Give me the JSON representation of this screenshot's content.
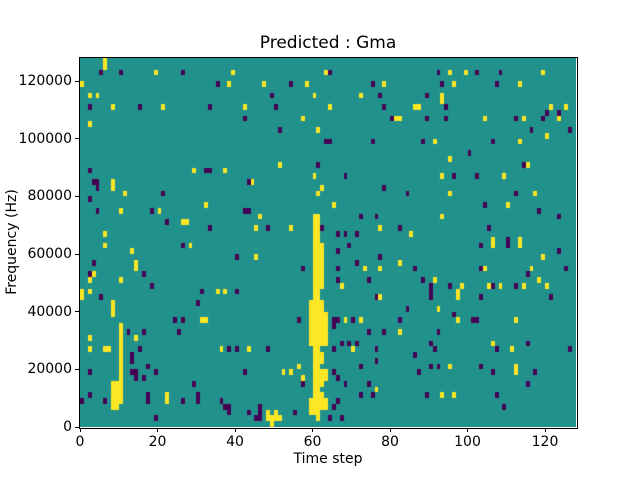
{
  "window": {
    "background": "#ffffff"
  },
  "chart_data": {
    "type": "heatmap",
    "title": "Predicted : Gma",
    "xlabel": "Time step",
    "ylabel": "Frequency (Hz)",
    "x_ticks": [
      0,
      20,
      40,
      60,
      80,
      100,
      120
    ],
    "y_ticks": [
      0,
      20000,
      40000,
      60000,
      80000,
      100000,
      120000
    ],
    "xlim": [
      0,
      128
    ],
    "ylim": [
      0,
      128000
    ],
    "n_time_steps": 128,
    "n_freq_bins": 64,
    "freq_bin_hz": 2000,
    "colormap": "viridis",
    "grid": false,
    "legend": "none",
    "value_levels": {
      "low": 0,
      "mid": 0.5,
      "high": 1
    },
    "colors": {
      "mid": "#21918c",
      "low": "#440154",
      "high": "#fde725"
    },
    "cells_high_runs": [
      [
        0,
        59,
        59
      ],
      [
        0,
        22,
        23
      ],
      [
        2,
        57,
        57
      ],
      [
        2,
        52,
        52
      ],
      [
        2,
        25,
        25
      ],
      [
        2,
        23,
        23
      ],
      [
        2,
        15,
        15
      ],
      [
        2,
        13,
        13
      ],
      [
        3,
        26,
        26
      ],
      [
        4,
        57,
        57
      ],
      [
        6,
        62,
        63
      ],
      [
        6,
        33,
        33
      ],
      [
        6,
        31,
        31
      ],
      [
        6,
        13,
        13
      ],
      [
        7,
        13,
        13
      ],
      [
        8,
        55,
        55
      ],
      [
        8,
        41,
        42
      ],
      [
        8,
        19,
        21
      ],
      [
        8,
        3,
        7
      ],
      [
        9,
        3,
        7
      ],
      [
        10,
        37,
        37
      ],
      [
        10,
        25,
        25
      ],
      [
        10,
        4,
        17
      ],
      [
        11,
        40,
        40
      ],
      [
        13,
        30,
        30
      ],
      [
        14,
        27,
        28
      ],
      [
        14,
        15,
        15
      ],
      [
        19,
        61,
        61
      ],
      [
        20,
        37,
        37
      ],
      [
        21,
        55,
        55
      ],
      [
        22,
        4,
        5
      ],
      [
        26,
        35,
        35
      ],
      [
        27,
        35,
        35
      ],
      [
        28,
        31,
        31
      ],
      [
        29,
        44,
        44
      ],
      [
        31,
        18,
        18
      ],
      [
        32,
        38,
        38
      ],
      [
        32,
        18,
        18
      ],
      [
        35,
        23,
        23
      ],
      [
        36,
        13,
        13
      ],
      [
        37,
        44,
        44
      ],
      [
        37,
        23,
        23
      ],
      [
        38,
        59,
        59
      ],
      [
        39,
        61,
        61
      ],
      [
        42,
        55,
        55
      ],
      [
        43,
        13,
        13
      ],
      [
        44,
        42,
        42
      ],
      [
        45,
        34,
        34
      ],
      [
        45,
        29,
        29
      ],
      [
        46,
        36,
        36
      ],
      [
        47,
        59,
        59
      ],
      [
        48,
        1,
        2
      ],
      [
        49,
        0,
        1
      ],
      [
        50,
        1,
        2
      ],
      [
        51,
        45,
        45
      ],
      [
        51,
        1,
        1
      ],
      [
        52,
        9,
        9
      ],
      [
        54,
        34,
        34
      ],
      [
        54,
        9,
        9
      ],
      [
        56,
        10,
        10
      ],
      [
        57,
        53,
        53
      ],
      [
        57,
        8,
        8
      ],
      [
        58,
        59,
        59
      ],
      [
        59,
        14,
        21
      ],
      [
        59,
        2,
        4
      ],
      [
        60,
        57,
        57
      ],
      [
        60,
        43,
        43
      ],
      [
        60,
        2,
        36
      ],
      [
        61,
        51,
        51
      ],
      [
        61,
        40,
        40
      ],
      [
        61,
        1,
        36
      ],
      [
        62,
        41,
        41
      ],
      [
        62,
        24,
        31
      ],
      [
        62,
        14,
        21
      ],
      [
        62,
        11,
        12
      ],
      [
        62,
        7,
        9
      ],
      [
        62,
        3,
        5
      ],
      [
        63,
        61,
        61
      ],
      [
        63,
        14,
        19
      ],
      [
        63,
        8,
        9
      ],
      [
        63,
        3,
        4
      ],
      [
        64,
        55,
        55
      ],
      [
        65,
        38,
        38
      ],
      [
        67,
        24,
        24
      ],
      [
        68,
        18,
        18
      ],
      [
        70,
        13,
        13
      ],
      [
        72,
        57,
        57
      ],
      [
        72,
        18,
        18
      ],
      [
        73,
        27,
        27
      ],
      [
        76,
        6,
        6
      ],
      [
        77,
        34,
        34
      ],
      [
        77,
        27,
        27
      ],
      [
        77,
        22,
        22
      ],
      [
        78,
        59,
        59
      ],
      [
        81,
        53,
        53
      ],
      [
        82,
        53,
        53
      ],
      [
        82,
        28,
        28
      ],
      [
        82,
        16,
        16
      ],
      [
        85,
        33,
        33
      ],
      [
        86,
        55,
        55
      ],
      [
        87,
        55,
        55
      ],
      [
        91,
        49,
        49
      ],
      [
        91,
        25,
        25
      ],
      [
        92,
        20,
        20
      ],
      [
        93,
        56,
        57
      ],
      [
        93,
        43,
        43
      ],
      [
        93,
        36,
        36
      ],
      [
        93,
        5,
        5
      ],
      [
        95,
        61,
        61
      ],
      [
        95,
        46,
        46
      ],
      [
        95,
        40,
        40
      ],
      [
        95,
        10,
        10
      ],
      [
        96,
        59,
        59
      ],
      [
        96,
        5,
        5
      ],
      [
        97,
        22,
        23
      ],
      [
        97,
        18,
        18
      ],
      [
        98,
        24,
        24
      ],
      [
        99,
        61,
        61
      ],
      [
        104,
        53,
        53
      ],
      [
        104,
        27,
        27
      ],
      [
        105,
        24,
        24
      ],
      [
        106,
        31,
        32
      ],
      [
        106,
        14,
        14
      ],
      [
        108,
        24,
        24
      ],
      [
        109,
        43,
        43
      ],
      [
        110,
        38,
        38
      ],
      [
        111,
        13,
        13
      ],
      [
        112,
        18,
        18
      ],
      [
        112,
        9,
        10
      ],
      [
        113,
        59,
        59
      ],
      [
        113,
        49,
        49
      ],
      [
        113,
        31,
        32
      ],
      [
        114,
        53,
        53
      ],
      [
        114,
        24,
        24
      ],
      [
        115,
        45,
        45
      ],
      [
        116,
        27,
        27
      ],
      [
        117,
        40,
        40
      ],
      [
        118,
        25,
        25
      ],
      [
        119,
        61,
        61
      ],
      [
        119,
        29,
        29
      ],
      [
        120,
        50,
        50
      ],
      [
        120,
        24,
        24
      ],
      [
        121,
        55,
        55
      ],
      [
        123,
        53,
        53
      ],
      [
        125,
        55,
        55
      ]
    ],
    "cells_low_runs": [
      [
        0,
        4,
        4
      ],
      [
        2,
        55,
        55
      ],
      [
        2,
        44,
        44
      ],
      [
        2,
        39,
        39
      ],
      [
        2,
        26,
        26
      ],
      [
        2,
        9,
        9
      ],
      [
        2,
        5,
        5
      ],
      [
        3,
        42,
        42
      ],
      [
        3,
        28,
        28
      ],
      [
        4,
        41,
        42
      ],
      [
        4,
        37,
        37
      ],
      [
        5,
        61,
        61
      ],
      [
        5,
        22,
        22
      ],
      [
        6,
        4,
        4
      ],
      [
        10,
        61,
        61
      ],
      [
        12,
        16,
        16
      ],
      [
        13,
        11,
        12
      ],
      [
        13,
        9,
        9
      ],
      [
        14,
        8,
        9
      ],
      [
        15,
        55,
        55
      ],
      [
        15,
        13,
        13
      ],
      [
        16,
        26,
        26
      ],
      [
        16,
        16,
        16
      ],
      [
        16,
        8,
        8
      ],
      [
        17,
        10,
        10
      ],
      [
        17,
        4,
        5
      ],
      [
        18,
        37,
        37
      ],
      [
        18,
        24,
        24
      ],
      [
        19,
        9,
        9
      ],
      [
        19,
        1,
        1
      ],
      [
        21,
        40,
        40
      ],
      [
        22,
        35,
        35
      ],
      [
        24,
        18,
        18
      ],
      [
        25,
        16,
        16
      ],
      [
        26,
        61,
        61
      ],
      [
        26,
        31,
        31
      ],
      [
        26,
        18,
        18
      ],
      [
        26,
        4,
        4
      ],
      [
        29,
        7,
        7
      ],
      [
        30,
        21,
        21
      ],
      [
        30,
        4,
        5
      ],
      [
        31,
        23,
        23
      ],
      [
        32,
        44,
        44
      ],
      [
        33,
        55,
        55
      ],
      [
        33,
        44,
        44
      ],
      [
        33,
        34,
        34
      ],
      [
        35,
        59,
        59
      ],
      [
        36,
        4,
        4
      ],
      [
        37,
        3,
        3
      ],
      [
        38,
        13,
        13
      ],
      [
        38,
        2,
        3
      ],
      [
        40,
        29,
        29
      ],
      [
        40,
        23,
        23
      ],
      [
        40,
        13,
        13
      ],
      [
        42,
        53,
        53
      ],
      [
        42,
        37,
        37
      ],
      [
        42,
        9,
        9
      ],
      [
        43,
        42,
        42
      ],
      [
        43,
        37,
        37
      ],
      [
        43,
        2,
        2
      ],
      [
        45,
        1,
        1
      ],
      [
        46,
        1,
        3
      ],
      [
        48,
        34,
        34
      ],
      [
        48,
        13,
        13
      ],
      [
        49,
        57,
        57
      ],
      [
        50,
        55,
        55
      ],
      [
        51,
        51,
        51
      ],
      [
        54,
        59,
        59
      ],
      [
        55,
        2,
        2
      ],
      [
        56,
        18,
        18
      ],
      [
        57,
        27,
        27
      ],
      [
        57,
        7,
        7
      ],
      [
        61,
        45,
        45
      ],
      [
        62,
        34,
        34
      ],
      [
        63,
        49,
        49
      ],
      [
        64,
        61,
        61
      ],
      [
        64,
        49,
        49
      ],
      [
        64,
        1,
        1
      ],
      [
        65,
        17,
        18
      ],
      [
        65,
        13,
        13
      ],
      [
        65,
        9,
        9
      ],
      [
        65,
        3,
        3
      ],
      [
        66,
        33,
        33
      ],
      [
        66,
        30,
        30
      ],
      [
        66,
        27,
        27
      ],
      [
        66,
        25,
        25
      ],
      [
        66,
        18,
        18
      ],
      [
        66,
        8,
        8
      ],
      [
        66,
        4,
        4
      ],
      [
        67,
        14,
        14
      ],
      [
        67,
        1,
        1
      ],
      [
        68,
        43,
        43
      ],
      [
        68,
        33,
        33
      ],
      [
        68,
        7,
        7
      ],
      [
        69,
        31,
        31
      ],
      [
        69,
        14,
        14
      ],
      [
        70,
        18,
        18
      ],
      [
        71,
        33,
        33
      ],
      [
        71,
        28,
        28
      ],
      [
        71,
        14,
        14
      ],
      [
        72,
        36,
        36
      ],
      [
        72,
        10,
        10
      ],
      [
        72,
        5,
        5
      ],
      [
        74,
        25,
        25
      ],
      [
        74,
        16,
        16
      ],
      [
        74,
        7,
        7
      ],
      [
        75,
        59,
        59
      ],
      [
        75,
        49,
        49
      ],
      [
        75,
        5,
        5
      ],
      [
        76,
        36,
        36
      ],
      [
        76,
        22,
        22
      ],
      [
        76,
        13,
        13
      ],
      [
        76,
        11,
        11
      ],
      [
        77,
        57,
        57
      ],
      [
        77,
        29,
        29
      ],
      [
        78,
        55,
        55
      ],
      [
        78,
        41,
        41
      ],
      [
        78,
        16,
        16
      ],
      [
        80,
        53,
        53
      ],
      [
        82,
        34,
        34
      ],
      [
        82,
        18,
        18
      ],
      [
        84,
        40,
        40
      ],
      [
        84,
        20,
        20
      ],
      [
        86,
        27,
        27
      ],
      [
        86,
        12,
        12
      ],
      [
        87,
        9,
        9
      ],
      [
        88,
        49,
        49
      ],
      [
        88,
        25,
        25
      ],
      [
        89,
        57,
        57
      ],
      [
        89,
        53,
        53
      ],
      [
        89,
        5,
        5
      ],
      [
        90,
        22,
        24
      ],
      [
        90,
        14,
        14
      ],
      [
        90,
        10,
        10
      ],
      [
        91,
        13,
        13
      ],
      [
        92,
        61,
        61
      ],
      [
        92,
        16,
        16
      ],
      [
        92,
        10,
        10
      ],
      [
        93,
        59,
        59
      ],
      [
        94,
        55,
        55
      ],
      [
        94,
        53,
        53
      ],
      [
        95,
        24,
        24
      ],
      [
        96,
        43,
        43
      ],
      [
        96,
        19,
        19
      ],
      [
        100,
        47,
        47
      ],
      [
        101,
        18,
        18
      ],
      [
        102,
        61,
        61
      ],
      [
        102,
        43,
        43
      ],
      [
        102,
        18,
        18
      ],
      [
        103,
        31,
        31
      ],
      [
        103,
        27,
        27
      ],
      [
        103,
        22,
        22
      ],
      [
        103,
        10,
        10
      ],
      [
        104,
        38,
        38
      ],
      [
        105,
        34,
        34
      ],
      [
        106,
        49,
        49
      ],
      [
        106,
        24,
        24
      ],
      [
        106,
        9,
        9
      ],
      [
        107,
        59,
        59
      ],
      [
        107,
        13,
        13
      ],
      [
        107,
        5,
        5
      ],
      [
        108,
        61,
        61
      ],
      [
        109,
        3,
        3
      ],
      [
        110,
        31,
        32
      ],
      [
        112,
        53,
        53
      ],
      [
        112,
        40,
        40
      ],
      [
        112,
        24,
        24
      ],
      [
        114,
        45,
        45
      ],
      [
        115,
        26,
        26
      ],
      [
        115,
        14,
        14
      ],
      [
        115,
        7,
        7
      ],
      [
        116,
        51,
        51
      ],
      [
        117,
        9,
        9
      ],
      [
        118,
        37,
        37
      ],
      [
        119,
        53,
        53
      ],
      [
        120,
        54,
        54
      ],
      [
        121,
        22,
        22
      ],
      [
        123,
        54,
        54
      ],
      [
        123,
        36,
        36
      ],
      [
        123,
        30,
        30
      ],
      [
        125,
        27,
        27
      ],
      [
        126,
        51,
        51
      ],
      [
        126,
        13,
        13
      ]
    ]
  }
}
